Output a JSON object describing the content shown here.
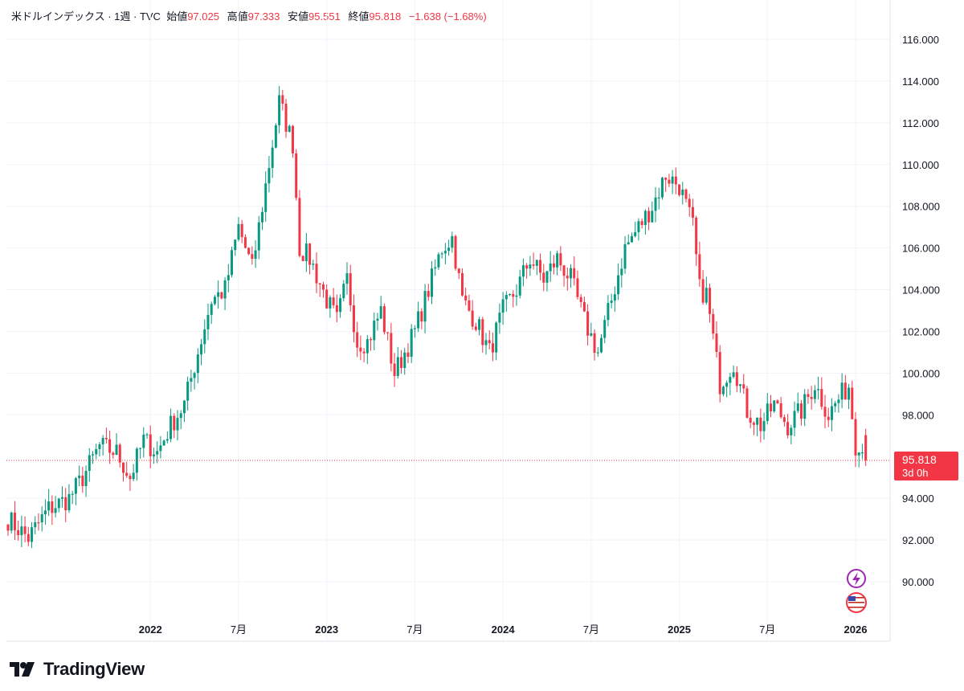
{
  "legend": {
    "symbol": "米ドルインデックス · 1週 · TVC",
    "open_label": "始値",
    "open_value": "97.025",
    "high_label": "高値",
    "high_value": "97.333",
    "low_label": "安値",
    "low_value": "95.551",
    "close_label": "終値",
    "close_value": "95.818",
    "change": "−1.638 (−1.68%)"
  },
  "brand": {
    "name": "TradingView",
    "logo_icon": "tradingview-logo-icon"
  },
  "badges": [
    {
      "icon": "lightning-event-icon",
      "color": "#9c27b0"
    },
    {
      "icon": "us-flag-icon",
      "color": "#f23645"
    }
  ],
  "colors": {
    "up": "#089981",
    "down": "#f23645",
    "grid": "#f0f3fa",
    "text": "#131722"
  },
  "chart_data": {
    "type": "candlestick",
    "title": "米ドルインデックス · 1週 · TVC",
    "ylim": [
      88.6,
      117.0
    ],
    "y_ticks": [
      "116.000",
      "114.000",
      "112.000",
      "110.000",
      "108.000",
      "106.000",
      "104.000",
      "102.000",
      "100.000",
      "98.000",
      "94.000",
      "92.000",
      "90.000"
    ],
    "x_ticks": [
      {
        "label": "2022",
        "week": 42,
        "bold": true
      },
      {
        "label": "7月",
        "week": 68,
        "bold": false
      },
      {
        "label": "2023",
        "week": 94,
        "bold": true
      },
      {
        "label": "7月",
        "week": 120,
        "bold": false
      },
      {
        "label": "2024",
        "week": 146,
        "bold": true
      },
      {
        "label": "7月",
        "week": 172,
        "bold": false
      },
      {
        "label": "2025",
        "week": 198,
        "bold": true
      },
      {
        "label": "7月",
        "week": 224,
        "bold": false
      },
      {
        "label": "2026",
        "week": 250,
        "bold": true
      }
    ],
    "last_price": {
      "value": 95.818,
      "label": "95.818",
      "countdown": "3d 0h"
    },
    "total_weeks": 254,
    "anchors": [
      [
        0,
        93.0
      ],
      [
        6,
        92.1
      ],
      [
        12,
        93.5
      ],
      [
        18,
        94.0
      ],
      [
        22,
        95.0
      ],
      [
        27,
        96.5
      ],
      [
        32,
        96.2
      ],
      [
        36,
        95.0
      ],
      [
        40,
        96.8
      ],
      [
        44,
        96.2
      ],
      [
        48,
        97.5
      ],
      [
        52,
        98.5
      ],
      [
        56,
        101.0
      ],
      [
        60,
        103.5
      ],
      [
        64,
        104.0
      ],
      [
        68,
        107.0
      ],
      [
        72,
        105.0
      ],
      [
        76,
        109.0
      ],
      [
        80,
        113.0
      ],
      [
        84,
        111.0
      ],
      [
        86,
        106.0
      ],
      [
        89,
        105.5
      ],
      [
        94,
        103.5
      ],
      [
        97,
        102.5
      ],
      [
        100,
        104.5
      ],
      [
        103,
        101.5
      ],
      [
        106,
        101.5
      ],
      [
        110,
        103.0
      ],
      [
        114,
        100.0
      ],
      [
        117,
        101.0
      ],
      [
        120,
        102.0
      ],
      [
        124,
        104.0
      ],
      [
        128,
        106.0
      ],
      [
        131,
        106.5
      ],
      [
        134,
        103.5
      ],
      [
        138,
        102.5
      ],
      [
        142,
        101.0
      ],
      [
        146,
        103.0
      ],
      [
        150,
        104.0
      ],
      [
        154,
        105.5
      ],
      [
        158,
        104.5
      ],
      [
        162,
        105.5
      ],
      [
        166,
        104.5
      ],
      [
        170,
        102.5
      ],
      [
        174,
        101.0
      ],
      [
        178,
        103.5
      ],
      [
        182,
        106.0
      ],
      [
        186,
        107.0
      ],
      [
        190,
        108.0
      ],
      [
        194,
        109.5
      ],
      [
        198,
        109.0
      ],
      [
        202,
        107.0
      ],
      [
        204,
        104.0
      ],
      [
        206,
        103.8
      ],
      [
        210,
        99.5
      ],
      [
        214,
        100.5
      ],
      [
        218,
        98.2
      ],
      [
        222,
        97.5
      ],
      [
        226,
        98.5
      ],
      [
        230,
        97.5
      ],
      [
        234,
        98.2
      ],
      [
        238,
        99.5
      ],
      [
        242,
        98.0
      ],
      [
        246,
        99.0
      ],
      [
        248,
        99.4
      ],
      [
        250,
        96.6
      ],
      [
        251,
        96.2
      ]
    ]
  }
}
